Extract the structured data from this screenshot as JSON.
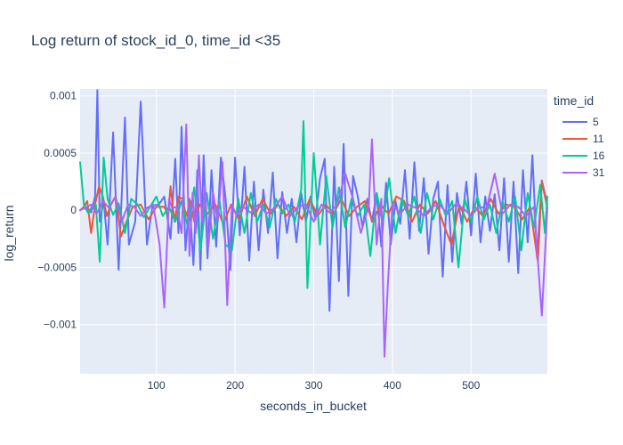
{
  "chart_data": {
    "type": "line",
    "title": "Log return of stock_id_0, time_id <35",
    "xlabel": "seconds_in_bucket",
    "ylabel": "log_return",
    "xlim": [
      3,
      597
    ],
    "ylim": [
      -0.00143,
      0.00106
    ],
    "xticks": [
      100,
      200,
      300,
      400,
      500
    ],
    "yticks": [
      0.001,
      0.0005,
      0,
      -0.0005,
      -0.001
    ],
    "ytick_labels": [
      "0.001",
      "0.0005",
      "0",
      "−0.0005",
      "−0.001"
    ],
    "grid": true,
    "plot_background": "#e5ecf6",
    "legend": {
      "title": "time_id",
      "position": "right"
    },
    "series": [
      {
        "name": "5",
        "color": "#636efa",
        "x": [
          3,
          10,
          17,
          22,
          25,
          28,
          33,
          38,
          45,
          52,
          60,
          65,
          73,
          80,
          88,
          95,
          103,
          110,
          118,
          124,
          128,
          132,
          137,
          142,
          147,
          152,
          156,
          160,
          165,
          170,
          176,
          182,
          188,
          194,
          200,
          206,
          212,
          218,
          224,
          230,
          236,
          242,
          248,
          254,
          260,
          266,
          272,
          278,
          284,
          290,
          296,
          302,
          308,
          314,
          320,
          326,
          332,
          338,
          344,
          350,
          356,
          362,
          368,
          374,
          380,
          386,
          392,
          398,
          404,
          410,
          416,
          422,
          428,
          434,
          440,
          446,
          452,
          458,
          464,
          470,
          476,
          482,
          488,
          494,
          500,
          506,
          512,
          518,
          524,
          530,
          536,
          542,
          548,
          554,
          560,
          566,
          572,
          578,
          584,
          590,
          597
        ],
        "y": [
          0,
          3e-05,
          -2e-05,
          0.00012,
          0.00105,
          -0.0001,
          8e-05,
          -0.0003,
          0.00068,
          -0.00052,
          0.00081,
          -0.0003,
          -0.0001,
          0.00095,
          -0.0003,
          4e-05,
          5e-05,
          0.00012,
          -0.00025,
          0.00045,
          -0.0002,
          0.00073,
          -0.00035,
          0.0001,
          -0.00048,
          0.00035,
          -0.00052,
          0.00048,
          -0.00042,
          0.00035,
          -0.00032,
          0.00046,
          0.0001,
          -0.00052,
          0.00046,
          -0.00022,
          0.00038,
          -0.00044,
          0.00025,
          -0.00035,
          0.00018,
          -0.0002,
          0.00033,
          -0.00042,
          0.00016,
          -0.0002,
          0.0001,
          -0.00028,
          0.00015,
          -0.0001,
          0.00012,
          -8e-05,
          0.00028,
          0.00045,
          -0.00088,
          0.00038,
          -0.00062,
          0.00058,
          -0.00075,
          0.0003,
          0.00012,
          -0.00015,
          0.0001,
          -0.0001,
          0.00015,
          -0.00032,
          0.00024,
          -0.0003,
          8e-05,
          -0.00012,
          0.00035,
          -0.00025,
          0.00042,
          -0.00018,
          0.00028,
          -0.00038,
          0.0001,
          0.00025,
          -0.00058,
          0.00022,
          -0.00045,
          0.00015,
          -0.00012,
          0.00025,
          -0.00022,
          0.00032,
          -0.00028,
          0.00012,
          -0.00018,
          0.00014,
          -0.00035,
          0.00028,
          -0.00045,
          0.00025,
          -0.00055,
          0.00035,
          -0.00028,
          0.00048,
          -0.00042,
          0.00026,
          5e-05
        ]
      },
      {
        "name": "11",
        "color": "#ef553b",
        "x": [
          3,
          8,
          12,
          17,
          22,
          27,
          32,
          37,
          42,
          48,
          55,
          62,
          70,
          80,
          90,
          100,
          110,
          115,
          118,
          123,
          128,
          133,
          138,
          143,
          148,
          155,
          165,
          175,
          185,
          195,
          205,
          215,
          225,
          235,
          245,
          255,
          265,
          275,
          285,
          295,
          305,
          315,
          325,
          335,
          345,
          355,
          365,
          375,
          385,
          395,
          405,
          415,
          425,
          435,
          445,
          455,
          465,
          475,
          485,
          495,
          505,
          515,
          525,
          535,
          545,
          555,
          565,
          575,
          585,
          590,
          597
        ],
        "y": [
          0,
          3e-05,
          8e-05,
          -0.0002,
          5e-05,
          0.00021,
          0.00012,
          -5e-05,
          5e-05,
          0.00012,
          -0.00023,
          -0.0001,
          3e-05,
          5e-05,
          -8e-05,
          3e-05,
          3e-05,
          -5e-05,
          0.00021,
          -0.0001,
          0.00012,
          0.0001,
          -5e-05,
          8e-05,
          -0.0001,
          5e-05,
          -3e-05,
          5e-05,
          -0.00012,
          5e-05,
          -8e-05,
          0.00012,
          -5e-05,
          0.0001,
          -3e-05,
          5e-05,
          -5e-05,
          3e-05,
          -8e-05,
          0.0001,
          -5e-05,
          5e-05,
          -3e-05,
          0.0001,
          -5e-05,
          3e-05,
          8e-05,
          -0.0001,
          5e-05,
          -3e-05,
          0.00012,
          8e-05,
          -0.0001,
          5e-05,
          -3e-05,
          8e-05,
          -0.00012,
          -0.0003,
          5e-05,
          -0.0001,
          3e-05,
          -5e-05,
          0.0001,
          -3e-05,
          5e-05,
          3e-05,
          -8e-05,
          3e-05,
          -0.00045,
          0.00025,
          2e-05
        ]
      },
      {
        "name": "16",
        "color": "#00cc96",
        "x": [
          3,
          8,
          13,
          18,
          23,
          28,
          33,
          38,
          45,
          52,
          60,
          68,
          76,
          84,
          92,
          100,
          108,
          116,
          124,
          132,
          140,
          148,
          156,
          164,
          172,
          180,
          188,
          196,
          204,
          212,
          220,
          228,
          236,
          244,
          252,
          260,
          268,
          276,
          284,
          287,
          292,
          300,
          308,
          316,
          324,
          332,
          340,
          348,
          356,
          364,
          372,
          380,
          388,
          396,
          404,
          412,
          420,
          428,
          436,
          444,
          452,
          460,
          468,
          476,
          484,
          492,
          500,
          508,
          516,
          524,
          532,
          540,
          548,
          556,
          564,
          572,
          580,
          588,
          594,
          597
        ],
        "y": [
          0.00042,
          4e-05,
          -2e-05,
          3e-05,
          5e-05,
          -0.00045,
          0.00046,
          0.0001,
          -4e-05,
          6e-05,
          -0.0002,
          0.0001,
          5e-05,
          -6e-05,
          3e-05,
          0.00012,
          -5e-05,
          3e-05,
          -0.0001,
          8e-05,
          -0.00015,
          0.0002,
          -0.00035,
          0.00015,
          -0.00025,
          0.0001,
          -0.0003,
          -0.00035,
          0.0001,
          -0.0002,
          0.00015,
          -0.0001,
          5e-05,
          -0.00015,
          0.0001,
          -3e-05,
          5e-05,
          -0.0001,
          0.00018,
          0.00078,
          -0.00068,
          0.0005,
          -0.0003,
          0.0003,
          -0.00015,
          0.0002,
          -0.00015,
          0.0001,
          -5e-05,
          5e-05,
          -0.0004,
          0.00015,
          -0.0001,
          0.00028,
          -0.0002,
          0.0001,
          -5e-05,
          0.00012,
          -0.0002,
          0.00015,
          -8e-05,
          0.0001,
          -5e-05,
          8e-05,
          -0.0005,
          0.0001,
          -0.0001,
          0.00012,
          -8e-05,
          5e-05,
          -0.0002,
          8e-05,
          -0.0001,
          0.00012,
          -0.00035,
          0.00015,
          -0.00015,
          0.00022,
          -0.0002,
          0.00012
        ]
      },
      {
        "name": "31",
        "color": "#ab63fa",
        "x": [
          3,
          10,
          17,
          24,
          32,
          40,
          48,
          56,
          64,
          72,
          80,
          88,
          96,
          104,
          110,
          116,
          120,
          126,
          132,
          138,
          142,
          146,
          150,
          154,
          158,
          162,
          166,
          172,
          178,
          184,
          190,
          196,
          202,
          210,
          220,
          230,
          240,
          250,
          260,
          270,
          280,
          290,
          300,
          310,
          320,
          330,
          340,
          350,
          360,
          370,
          374,
          380,
          386,
          390,
          394,
          400,
          410,
          420,
          430,
          440,
          450,
          460,
          470,
          480,
          490,
          500,
          510,
          520,
          530,
          540,
          550,
          560,
          570,
          580,
          590,
          597
        ],
        "y": [
          0,
          2e-05,
          5e-05,
          -3e-05,
          8e-05,
          2e-05,
          0.00012,
          -0.0001,
          5e-05,
          3e-05,
          -5e-05,
          2e-05,
          5e-05,
          -0.0003,
          -0.00085,
          0.0001,
          2e-05,
          3e-05,
          -0.0002,
          0.00075,
          -0.0004,
          0.00015,
          -0.0002,
          0.00048,
          -0.0001,
          0.0002,
          -0.00032,
          0.00015,
          -0.0001,
          0.00042,
          -0.00083,
          5e-05,
          -5e-05,
          3e-05,
          -2e-05,
          5e-05,
          -3e-05,
          2e-05,
          0.00012,
          -5e-05,
          3e-05,
          5e-05,
          -0.0001,
          5e-05,
          -2e-05,
          5e-05,
          0.00032,
          0.0001,
          -0.0002,
          5e-05,
          0.00062,
          -0.0003,
          0.0001,
          -0.00128,
          -0.00068,
          5e-05,
          -3e-05,
          5e-05,
          2e-05,
          -5e-05,
          3e-05,
          5e-05,
          -3e-05,
          5e-05,
          2e-05,
          -5e-05,
          3e-05,
          2e-05,
          0.00032,
          -3e-05,
          5e-05,
          3e-05,
          -5e-05,
          3e-05,
          -0.00092,
          2e-05
        ]
      }
    ]
  }
}
